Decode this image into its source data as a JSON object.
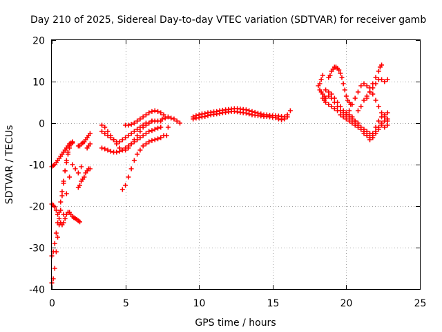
{
  "chart_data": {
    "type": "scatter",
    "title": "Day 210 of 2025, Sidereal Day-to-day VTEC variation (SDTVAR) for receiver gamb",
    "xlabel": "GPS time / hours",
    "ylabel": "SDTVAR / TECUs",
    "xlim": [
      0,
      25
    ],
    "ylim": [
      -40,
      20
    ],
    "xticks": [
      0,
      5,
      10,
      15,
      20,
      25
    ],
    "yticks": [
      -40,
      -30,
      -20,
      -10,
      0,
      10,
      20
    ],
    "grid": true,
    "marker": "+",
    "color": "#ff0000",
    "series": [
      {
        "name": "s1",
        "x": [
          0.0,
          0.1,
          0.2,
          0.3,
          0.4,
          0.5,
          0.6,
          0.7,
          0.8,
          0.9,
          1.0,
          1.1,
          1.2,
          1.3,
          1.4
        ],
        "y": [
          -38.5,
          -37.5,
          -35.0,
          -31.0,
          -27.5,
          -24.5,
          -21.0,
          -17.5,
          -14.5,
          -11.5,
          -9.0,
          -7.0,
          -5.5,
          -5.0,
          -4.8
        ]
      },
      {
        "name": "s2",
        "x": [
          0.0,
          0.1,
          0.2,
          0.3,
          0.4,
          0.5,
          0.6,
          0.7,
          0.8,
          0.9,
          1.0,
          1.1,
          1.2,
          1.3,
          1.4
        ],
        "y": [
          -32.0,
          -31.0,
          -29.0,
          -26.5,
          -24.0,
          -21.5,
          -19.0,
          -16.5,
          -14.0,
          -11.5,
          -9.5,
          -7.5,
          -6.0,
          -5.0,
          -4.5
        ]
      },
      {
        "name": "s3",
        "x": [
          0.0,
          0.1,
          0.2,
          0.3,
          0.4,
          0.5,
          0.6,
          0.7,
          0.8,
          0.9,
          1.0,
          1.1,
          1.2,
          1.3,
          1.4,
          1.5,
          1.6,
          1.7,
          1.8,
          1.9
        ],
        "y": [
          -19.5,
          -19.8,
          -20.2,
          -21.0,
          -22.0,
          -23.0,
          -24.0,
          -24.5,
          -24.0,
          -23.0,
          -22.0,
          -21.5,
          -21.5,
          -22.0,
          -22.5,
          -22.8,
          -23.0,
          -23.2,
          -23.5,
          -23.8
        ]
      },
      {
        "name": "s4",
        "x": [
          0.0,
          0.1,
          0.2,
          0.3,
          0.4,
          0.5,
          0.6,
          0.7,
          0.8,
          0.9,
          1.0,
          1.1,
          1.2,
          1.3,
          1.4
        ],
        "y": [
          -10.5,
          -10.2,
          -10.0,
          -9.5,
          -9.0,
          -8.5,
          -8.0,
          -7.5,
          -7.0,
          -6.5,
          -6.0,
          -5.5,
          -5.0,
          -4.8,
          -4.6
        ]
      },
      {
        "name": "s5",
        "x": [
          0.8,
          1.0,
          1.2,
          1.4,
          1.6,
          1.8,
          2.0
        ],
        "y": [
          -22.0,
          -17.0,
          -13.0,
          -10.0,
          -11.0,
          -12.0,
          -10.5
        ]
      },
      {
        "name": "s6",
        "x": [
          1.8,
          1.9,
          2.0,
          2.1,
          2.2,
          2.3,
          2.4,
          2.5,
          2.6
        ],
        "y": [
          -15.5,
          -15.0,
          -14.0,
          -13.5,
          -13.0,
          -12.0,
          -11.5,
          -11.0,
          -11.0
        ]
      },
      {
        "name": "s7",
        "x": [
          1.8,
          1.9,
          2.0,
          2.1,
          2.2,
          2.3,
          2.4,
          2.5,
          2.6,
          2.4,
          2.5,
          2.6
        ],
        "y": [
          -5.5,
          -5.5,
          -5.0,
          -4.8,
          -4.5,
          -4.0,
          -3.5,
          -3.0,
          -2.5,
          -6.0,
          -5.5,
          -5.0
        ]
      },
      {
        "name": "s8",
        "x": [
          3.4,
          3.6,
          3.8,
          4.0,
          4.2,
          4.4,
          4.6,
          4.8,
          5.0,
          5.2,
          5.4,
          5.6,
          5.8,
          6.0,
          6.2,
          6.4,
          6.6,
          6.8,
          7.0,
          7.2,
          7.4
        ],
        "y": [
          -0.5,
          -1.0,
          -2.0,
          -3.0,
          -4.0,
          -5.0,
          -6.0,
          -6.5,
          -6.5,
          -6.0,
          -5.0,
          -4.0,
          -3.0,
          -2.0,
          -1.0,
          -0.5,
          0.0,
          0.5,
          0.5,
          0.5,
          0.5
        ]
      },
      {
        "name": "s9",
        "x": [
          3.4,
          3.6,
          3.8,
          4.0,
          4.2,
          4.4,
          4.6,
          4.8,
          5.0,
          5.2,
          5.4,
          5.6,
          5.8,
          6.0,
          6.2,
          6.4,
          6.6,
          6.8,
          7.0,
          7.2,
          7.4
        ],
        "y": [
          -6.0,
          -6.2,
          -6.5,
          -6.8,
          -7.0,
          -7.0,
          -6.8,
          -6.5,
          -6.0,
          -5.5,
          -5.0,
          -4.5,
          -4.0,
          -3.5,
          -3.0,
          -2.5,
          -2.0,
          -1.8,
          -1.5,
          -1.2,
          -1.0
        ]
      },
      {
        "name": "s10",
        "x": [
          3.4,
          3.6,
          3.8,
          4.0,
          4.2,
          4.4,
          4.6,
          4.8,
          5.0,
          5.2,
          5.4,
          5.6,
          5.8,
          6.0,
          6.2,
          6.4,
          6.6,
          6.8,
          7.0
        ],
        "y": [
          -2.0,
          -2.5,
          -3.0,
          -3.5,
          -4.0,
          -4.5,
          -4.5,
          -4.0,
          -3.5,
          -3.0,
          -2.5,
          -2.0,
          -1.5,
          -1.0,
          -0.5,
          0.0,
          0.0,
          0.5,
          0.5
        ]
      },
      {
        "name": "s11",
        "x": [
          4.8,
          5.0,
          5.2,
          5.4,
          5.6,
          5.8,
          6.0,
          6.2,
          6.4,
          6.6,
          6.8,
          7.0,
          7.2,
          7.4,
          7.6
        ],
        "y": [
          -16.0,
          -15.0,
          -13.0,
          -11.0,
          -9.0,
          -7.5,
          -6.5,
          -5.5,
          -5.0,
          -4.5,
          -4.2,
          -4.0,
          -3.8,
          -3.5,
          -3.0
        ]
      },
      {
        "name": "s12",
        "x": [
          5.0,
          5.2,
          5.4,
          5.6,
          5.8,
          6.0,
          6.2,
          6.4,
          6.6,
          6.8,
          7.0,
          7.2,
          7.4,
          7.6
        ],
        "y": [
          -0.5,
          -0.5,
          -0.3,
          0.0,
          0.5,
          1.0,
          1.5,
          2.0,
          2.5,
          2.8,
          3.0,
          2.8,
          2.5,
          2.0
        ]
      },
      {
        "name": "s13",
        "x": [
          7.5,
          7.7,
          7.9,
          8.1,
          8.3,
          8.5,
          8.7,
          7.8,
          7.9
        ],
        "y": [
          1.0,
          1.2,
          1.5,
          1.2,
          1.0,
          0.5,
          0.0,
          -3.0,
          -1.0
        ]
      },
      {
        "name": "s14",
        "x": [
          9.6,
          9.8,
          10.0,
          10.2,
          10.4,
          10.6,
          10.8,
          11.0,
          11.2,
          11.4,
          11.6,
          11.8,
          12.0,
          12.2,
          12.4,
          12.6,
          12.8,
          13.0,
          13.2,
          13.4,
          13.6,
          13.8,
          14.0,
          14.2,
          14.4,
          14.6,
          14.8,
          15.0,
          15.2,
          15.4,
          15.6,
          15.8,
          16.0,
          16.2
        ],
        "y": [
          1.5,
          1.8,
          2.0,
          2.2,
          2.3,
          2.5,
          2.6,
          2.7,
          2.8,
          3.0,
          3.1,
          3.2,
          3.3,
          3.4,
          3.5,
          3.5,
          3.4,
          3.3,
          3.2,
          3.0,
          2.8,
          2.6,
          2.4,
          2.2,
          2.0,
          2.0,
          1.9,
          1.8,
          1.8,
          1.7,
          1.6,
          1.5,
          2.0,
          3.0
        ]
      },
      {
        "name": "s15",
        "x": [
          9.6,
          9.8,
          10.0,
          10.2,
          10.4,
          10.6,
          10.8,
          11.0,
          11.2,
          11.4,
          11.6,
          11.8,
          12.0,
          12.2,
          12.4,
          12.6,
          12.8,
          13.0,
          13.2,
          13.4,
          13.6,
          13.8,
          14.0,
          14.2,
          14.4,
          14.6,
          14.8,
          15.0,
          15.2,
          15.4,
          15.6,
          15.8,
          16.0
        ],
        "y": [
          1.0,
          1.2,
          1.3,
          1.5,
          1.6,
          1.8,
          2.0,
          2.1,
          2.2,
          2.3,
          2.5,
          2.6,
          2.7,
          2.8,
          2.8,
          2.7,
          2.6,
          2.5,
          2.4,
          2.2,
          2.0,
          1.9,
          1.8,
          1.7,
          1.6,
          1.6,
          1.5,
          1.4,
          1.3,
          1.0,
          0.8,
          1.0,
          1.5
        ]
      },
      {
        "name": "s16",
        "x": [
          18.1,
          18.2,
          18.3,
          18.4,
          18.2,
          18.3,
          18.4,
          18.5,
          18.4,
          18.5
        ],
        "y": [
          9.0,
          9.5,
          10.5,
          11.5,
          8.0,
          7.5,
          7.0,
          6.5,
          6.0,
          5.5
        ]
      },
      {
        "name": "s17",
        "x": [
          18.8,
          18.9,
          19.0,
          19.1,
          19.2,
          19.3,
          19.4,
          19.5,
          19.6,
          19.7,
          19.8,
          19.9,
          20.0,
          20.1,
          20.2,
          20.3
        ],
        "y": [
          11.0,
          11.5,
          12.5,
          13.0,
          13.5,
          13.5,
          13.2,
          12.8,
          12.0,
          11.0,
          9.5,
          8.0,
          6.5,
          5.5,
          5.0,
          4.5
        ]
      },
      {
        "name": "s18",
        "x": [
          18.6,
          18.8,
          19.0,
          19.2,
          19.4,
          19.6,
          19.8,
          20.0,
          20.2,
          20.4,
          20.6,
          20.8,
          21.0,
          21.2,
          21.4,
          21.6,
          21.8,
          22.0,
          22.2,
          22.4,
          22.6,
          22.8
        ],
        "y": [
          8.0,
          7.5,
          7.0,
          6.0,
          5.0,
          4.0,
          3.0,
          2.5,
          2.0,
          1.5,
          0.5,
          -0.5,
          -1.5,
          -2.5,
          -3.0,
          -3.5,
          -2.5,
          -1.0,
          0.5,
          1.5,
          2.0,
          2.5
        ]
      },
      {
        "name": "s19",
        "x": [
          18.6,
          18.8,
          19.0,
          19.2,
          19.4,
          19.6,
          19.8,
          20.0,
          20.2,
          20.4,
          20.6,
          20.8,
          21.0,
          21.2,
          21.4,
          21.6,
          21.8,
          22.0,
          22.2,
          22.4,
          22.6,
          22.8
        ],
        "y": [
          6.0,
          6.5,
          6.0,
          5.0,
          4.0,
          3.0,
          2.5,
          2.0,
          1.5,
          1.0,
          0.5,
          0.0,
          -1.0,
          -2.0,
          -3.0,
          -4.0,
          -3.5,
          -2.5,
          -1.5,
          -0.5,
          0.5,
          1.0
        ]
      },
      {
        "name": "s20",
        "x": [
          18.6,
          18.8,
          19.0,
          19.2,
          19.4,
          19.6,
          19.8,
          20.0,
          20.2,
          20.4,
          20.6,
          20.8
        ],
        "y": [
          5.0,
          4.5,
          4.0,
          3.5,
          3.0,
          2.0,
          1.5,
          1.0,
          0.5,
          0.0,
          -0.5,
          -1.0
        ]
      },
      {
        "name": "s21",
        "x": [
          20.0,
          20.2,
          20.4,
          20.6,
          20.8,
          21.0,
          21.2,
          21.4,
          21.6,
          21.8,
          22.0,
          22.2,
          22.4,
          22.6,
          22.8
        ],
        "y": [
          2.0,
          3.0,
          4.5,
          6.0,
          7.5,
          9.0,
          9.5,
          9.0,
          8.5,
          7.0,
          5.5,
          4.0,
          2.5,
          1.5,
          0.5
        ]
      },
      {
        "name": "s22",
        "x": [
          20.8,
          21.0,
          21.2,
          21.4,
          21.6,
          21.8,
          22.0,
          22.2,
          22.4,
          22.6,
          22.8
        ],
        "y": [
          3.0,
          4.0,
          5.5,
          6.5,
          7.5,
          8.5,
          9.5,
          10.5,
          10.5,
          10.0,
          10.5
        ]
      },
      {
        "name": "s23",
        "x": [
          21.4,
          21.6,
          21.8,
          22.0,
          22.2,
          22.3,
          22.4
        ],
        "y": [
          6.0,
          7.5,
          9.5,
          11.0,
          12.5,
          13.5,
          14.0
        ]
      },
      {
        "name": "s24",
        "x": [
          21.2,
          21.4,
          21.6,
          21.8,
          22.0,
          22.2,
          22.4,
          22.6,
          22.8
        ],
        "y": [
          -1.5,
          -2.0,
          -2.5,
          -3.0,
          -2.0,
          -1.0,
          0.0,
          -1.0,
          -0.5
        ]
      }
    ]
  }
}
